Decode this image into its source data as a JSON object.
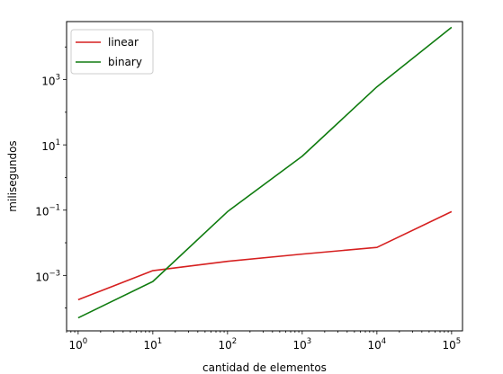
{
  "chart_data": {
    "type": "line",
    "title": "",
    "xlabel": "cantidad de elementos",
    "ylabel": "milisegundos",
    "x_scale": "log",
    "y_scale": "log",
    "xlim": [
      0.7,
      140000
    ],
    "ylim": [
      2e-05,
      60000
    ],
    "grid": false,
    "legend_position": "top-left",
    "x_ticks": [
      {
        "value": 1,
        "base": "10",
        "exp": "0"
      },
      {
        "value": 10,
        "base": "10",
        "exp": "1"
      },
      {
        "value": 100,
        "base": "10",
        "exp": "2"
      },
      {
        "value": 1000,
        "base": "10",
        "exp": "3"
      },
      {
        "value": 10000,
        "base": "10",
        "exp": "4"
      },
      {
        "value": 100000,
        "base": "10",
        "exp": "5"
      }
    ],
    "y_ticks": [
      {
        "value": 0.001,
        "base": "10",
        "exp": "−3"
      },
      {
        "value": 0.1,
        "base": "10",
        "exp": "−1"
      },
      {
        "value": 10,
        "base": "10",
        "exp": "1"
      },
      {
        "value": 1000,
        "base": "10",
        "exp": "3"
      }
    ],
    "x": [
      1,
      10,
      100,
      1000,
      10000,
      100000
    ],
    "series": [
      {
        "name": "linear",
        "color": "#d62020",
        "values": [
          0.00018,
          0.0014,
          0.0027,
          0.0045,
          0.0072,
          0.09
        ]
      },
      {
        "name": "binary",
        "color": "#107c10",
        "values": [
          5e-05,
          0.00065,
          0.09,
          4.5,
          600,
          40000
        ]
      }
    ]
  }
}
